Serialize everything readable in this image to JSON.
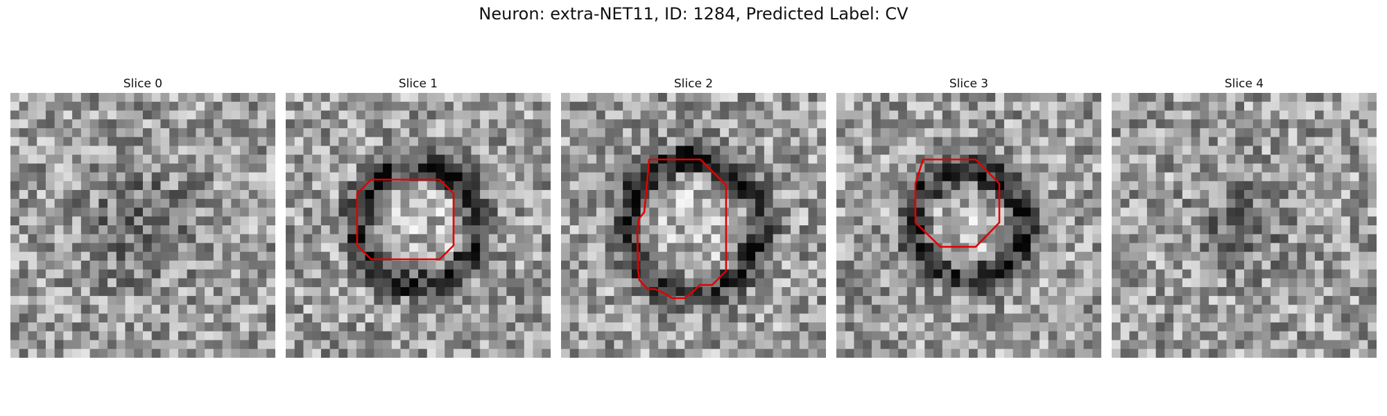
{
  "figure": {
    "title": "Neuron: extra-NET11, ID: 1284, Predicted Label: CV"
  },
  "contour_color": "#e00000",
  "panels": [
    {
      "title": "Slice 0",
      "has_contour": false
    },
    {
      "title": "Slice 1",
      "has_contour": true
    },
    {
      "title": "Slice 2",
      "has_contour": true
    },
    {
      "title": "Slice 3",
      "has_contour": true
    },
    {
      "title": "Slice 4",
      "has_contour": false
    }
  ]
}
